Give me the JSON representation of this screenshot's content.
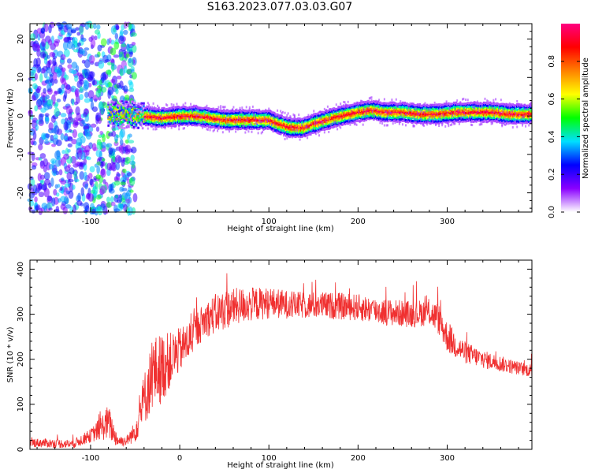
{
  "title": "S163.2023.077.03.03.G07",
  "colors": {
    "snr_line": "#f03030",
    "frame": "#000000"
  },
  "chart_data": [
    {
      "type": "heatmap",
      "xlabel": "Height of straight line (km)",
      "ylabel": "Frequency (Hz)",
      "xlim": [
        -168,
        395
      ],
      "ylim": [
        -25,
        24
      ],
      "xticks": [
        -100,
        0,
        100,
        200,
        300
      ],
      "yticks": [
        -20,
        -10,
        0,
        10,
        20
      ],
      "colorbar": {
        "label": "Normalized spectral amplitude",
        "range": [
          0,
          1
        ],
        "ticks": [
          "0.0",
          "0.2",
          "0.4",
          "0.6",
          "0.8"
        ],
        "colors": [
          "#ffffff",
          "#8a00ff",
          "#0000ff",
          "#00e0ff",
          "#00ff00",
          "#ffff00",
          "#ff8000",
          "#ff0000",
          "#ff0080"
        ]
      },
      "ridge": {
        "height_km": [
          -60,
          -40,
          -20,
          0,
          20,
          50,
          80,
          100,
          110,
          125,
          140,
          150,
          165,
          180,
          200,
          215,
          230,
          250,
          270,
          290,
          310,
          330,
          350,
          370,
          395
        ],
        "frequency_hz": [
          0.5,
          0.0,
          -0.5,
          0.0,
          0.0,
          -1.0,
          -1.0,
          -1.0,
          -2.0,
          -3.0,
          -3.0,
          -2.0,
          -1.0,
          0.0,
          1.0,
          1.5,
          1.0,
          1.0,
          0.5,
          0.5,
          1.0,
          1.0,
          1.0,
          0.5,
          0.5
        ]
      }
    },
    {
      "type": "line",
      "xlabel": "Height of straight line (km)",
      "ylabel": "SNR (10 * v/v)",
      "xlim": [
        -168,
        395
      ],
      "ylim": [
        0,
        420
      ],
      "xticks": [
        -100,
        0,
        100,
        200,
        300
      ],
      "yticks": [
        0,
        100,
        200,
        300,
        400
      ],
      "series": [
        {
          "x": [
            -168,
            -120,
            -100,
            -90,
            -80,
            -70,
            -60,
            -50,
            -40,
            -30,
            -20,
            -10,
            0,
            10,
            20,
            30,
            40,
            50,
            70,
            100,
            130,
            160,
            200,
            230,
            260,
            280,
            290,
            300,
            310,
            320,
            340,
            360,
            380,
            395
          ],
          "y": [
            15,
            12,
            30,
            45,
            60,
            20,
            18,
            40,
            110,
            170,
            180,
            200,
            220,
            240,
            270,
            290,
            300,
            310,
            320,
            325,
            320,
            320,
            315,
            305,
            300,
            305,
            290,
            250,
            230,
            215,
            200,
            190,
            180,
            175
          ],
          "spread": [
            10,
            10,
            15,
            25,
            40,
            15,
            10,
            25,
            60,
            80,
            80,
            60,
            50,
            45,
            40,
            40,
            45,
            45,
            40,
            35,
            30,
            30,
            30,
            30,
            30,
            30,
            35,
            35,
            30,
            25,
            20,
            18,
            15,
            15
          ]
        }
      ]
    }
  ]
}
